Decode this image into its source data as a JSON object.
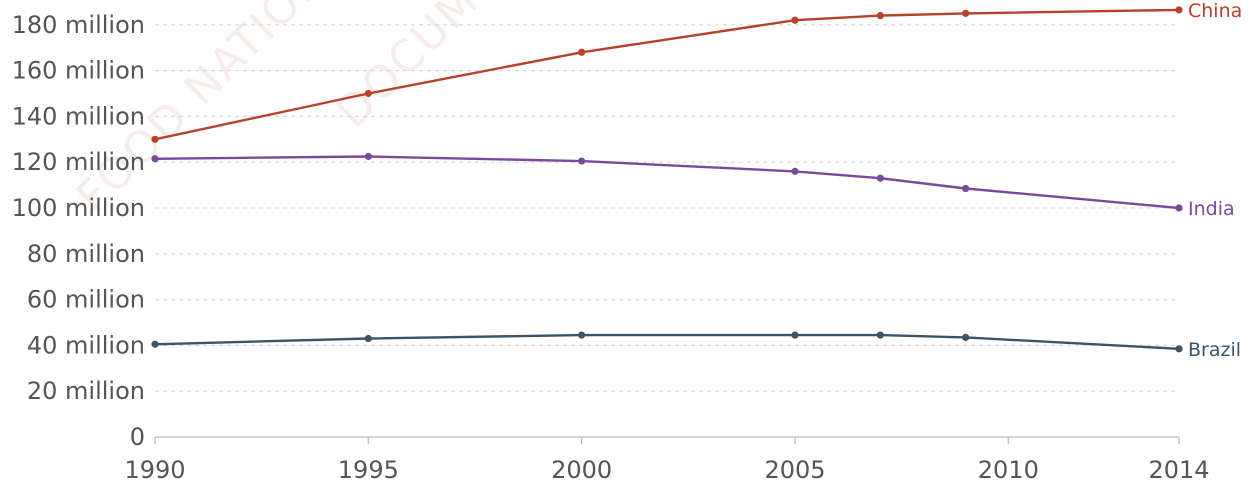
{
  "chart_data": {
    "type": "line",
    "title": "",
    "xlabel": "",
    "ylabel": "",
    "x": [
      1990,
      1995,
      2000,
      2005,
      2007,
      2009,
      2014
    ],
    "x_ticks": [
      1990,
      1995,
      2000,
      2005,
      2010,
      2014
    ],
    "x_tick_labels": [
      "1990",
      "1995",
      "2000",
      "2005",
      "2010",
      "2014"
    ],
    "ylim": [
      0,
      190000000
    ],
    "y_ticks": [
      0,
      20000000,
      40000000,
      60000000,
      80000000,
      100000000,
      120000000,
      140000000,
      160000000,
      180000000
    ],
    "y_tick_labels": [
      "0",
      "20 million",
      "40 million",
      "60 million",
      "80 million",
      "100 million",
      "120 million",
      "140 million",
      "160 million",
      "180 million"
    ],
    "grid": true,
    "series": [
      {
        "name": "China",
        "color": "#b8412b",
        "values": [
          130000000,
          150000000,
          168000000,
          182000000,
          184000000,
          185000000,
          186500000
        ]
      },
      {
        "name": "India",
        "color": "#7a4a9a",
        "values": [
          121500000,
          122500000,
          120500000,
          116000000,
          113000000,
          108500000,
          100000000
        ]
      },
      {
        "name": "Brazil",
        "color": "#3d5467",
        "values": [
          40500000,
          43000000,
          44500000,
          44500000,
          44500000,
          43500000,
          38500000
        ]
      }
    ]
  },
  "watermarks": [
    "FOOD NATIONS",
    "DOCUMENT"
  ]
}
